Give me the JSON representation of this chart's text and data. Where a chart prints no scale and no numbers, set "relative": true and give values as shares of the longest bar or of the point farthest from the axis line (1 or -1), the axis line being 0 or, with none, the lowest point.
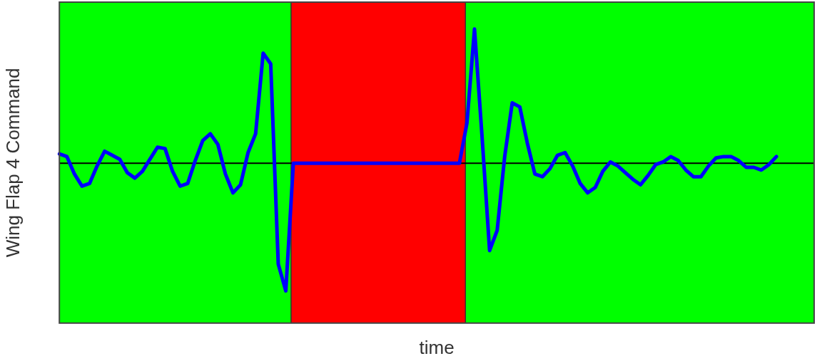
{
  "chart_data": {
    "type": "line",
    "relative": true,
    "xlabel": "time",
    "ylabel": "Wing Flap 4 Command",
    "marker": "none",
    "line_style": "solid",
    "categories": [
      null,
      null,
      null,
      null,
      null,
      null,
      null,
      null,
      null,
      null,
      null,
      null,
      null,
      null,
      null,
      null,
      null,
      null,
      null,
      null,
      null,
      null,
      null,
      null,
      null,
      null,
      null,
      null,
      null,
      null,
      null,
      null,
      null,
      null,
      null,
      null,
      null,
      null,
      null,
      null,
      null,
      null,
      null,
      null,
      null,
      null,
      null,
      null,
      null,
      null,
      null,
      null,
      null,
      null,
      null,
      null,
      null,
      null,
      null,
      null,
      null,
      null,
      null,
      null,
      null,
      null,
      null,
      null,
      null,
      null,
      null,
      null,
      null,
      null,
      null,
      null,
      null,
      null,
      null,
      null,
      null,
      null,
      null,
      null,
      null,
      null,
      null,
      null,
      null,
      null,
      null,
      null,
      null,
      null,
      null,
      null,
      null,
      null,
      null,
      null,
      null
    ],
    "series": [
      {
        "color": "#0000ff",
        "values": [
          0.07,
          0.05,
          -0.08,
          -0.17,
          -0.15,
          -0.02,
          0.09,
          0.06,
          0.03,
          -0.07,
          -0.11,
          -0.06,
          0.03,
          0.12,
          0.11,
          -0.06,
          -0.17,
          -0.15,
          0.02,
          0.17,
          0.22,
          0.14,
          -0.08,
          -0.22,
          -0.16,
          0.08,
          0.22,
          0.82,
          0.74,
          -0.75,
          -0.95,
          0,
          0,
          0,
          0,
          0,
          0,
          0,
          0,
          0,
          0,
          0,
          0,
          0,
          0,
          0,
          0,
          0,
          0,
          0,
          0,
          0,
          0,
          0,
          0.3,
          1,
          0.2,
          -0.65,
          -0.5,
          0.05,
          0.45,
          0.42,
          0.15,
          -0.08,
          -0.1,
          -0.04,
          0.06,
          0.08,
          -0.02,
          -0.15,
          -0.22,
          -0.18,
          -0.06,
          0.01,
          -0.02,
          -0.07,
          -0.12,
          -0.16,
          -0.09,
          -0.01,
          0.01,
          0.05,
          0.02,
          -0.05,
          -0.1,
          -0.1,
          -0.02,
          0.04,
          0.05,
          0.05,
          0.02,
          -0.03,
          -0.03,
          -0.05,
          -0.01,
          0.05,
          null,
          null,
          null,
          null,
          null
        ]
      }
    ]
  }
}
